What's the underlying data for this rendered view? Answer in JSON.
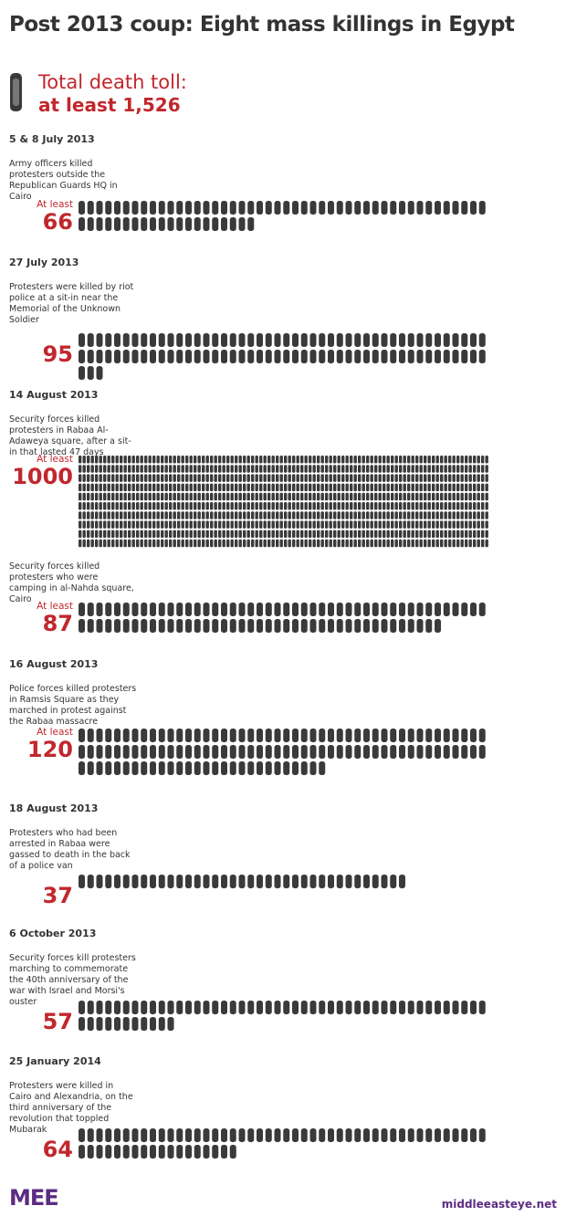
{
  "chart_data": {
    "type": "pictogram",
    "title": "Post 2013 coup: Eight mass killings in Egypt",
    "total_label": "Total death toll:",
    "total_value_label": "at least 1,526",
    "color": "#c1272d",
    "icon_color": "#3a3a3a",
    "events": [
      {
        "date": "5 & 8 July 2013",
        "description": "Army officers killed protesters outside the Republican Guards HQ in Cairo",
        "prefix": "At least",
        "value": 66
      },
      {
        "date": "27 July 2013",
        "description": "Protesters were killed by riot police at a sit-in near the Memorial of the Unknown Soldier",
        "value": 95
      },
      {
        "date": "14 August 2013",
        "description": "Security forces killed protesters in Rabaa Al-Adaweya square, after a sit-in that lasted 47 days",
        "prefix": "At least",
        "value": 1000
      },
      {
        "description": "Security forces killed protesters who were camping in al-Nahda square, Cairo",
        "prefix": "At least",
        "value": 87
      },
      {
        "date": "16 August 2013",
        "description": "Police forces killed protesters in Ramsis Square as they marched in protest against the Rabaa massacre",
        "prefix": "At least",
        "value": 120
      },
      {
        "date": "18 August 2013",
        "description": "Protesters who had been arrested in Rabaa were gassed to death in the back of a police van",
        "value": 37
      },
      {
        "date": "6 October 2013",
        "description": "Security forces kill protesters marching to commemorate the 40th anniversary of the war with Israel and Morsi's ouster",
        "value": 57
      },
      {
        "date": "25 January 2014",
        "description": "Protesters were killed in Cairo and Alexandria, on the third anniversary of the revolution that toppled Mubarak",
        "value": 64
      }
    ],
    "logo": "MEE",
    "source": "middleeasteye.net"
  }
}
